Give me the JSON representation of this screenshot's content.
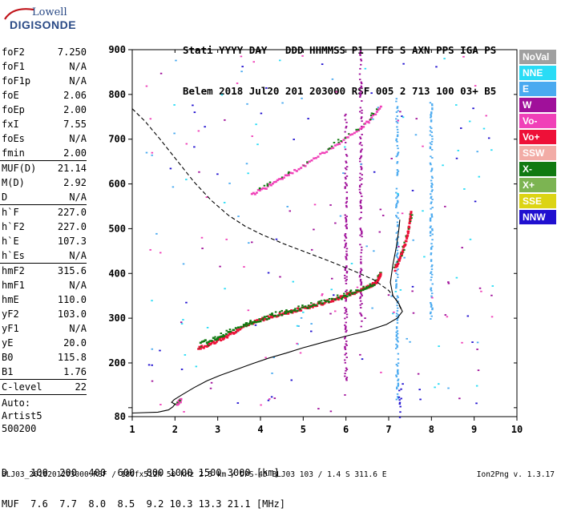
{
  "logo": {
    "line1": "Lowell",
    "line2": "DIGISONDE"
  },
  "header": {
    "labels": "Stati YYYY DAY   DDD HHMMSS P1  FFS S AXN PPS IGA PS",
    "values": "Belem 2018 Jul20 201 203000 RSF 005 2 713 100 03+ B5"
  },
  "params_group1": [
    {
      "k": "foF2",
      "v": "7.250"
    },
    {
      "k": "foF1",
      "v": "N/A"
    },
    {
      "k": "foF1p",
      "v": "N/A"
    },
    {
      "k": "foE",
      "v": "2.06"
    },
    {
      "k": "foEp",
      "v": "2.00"
    },
    {
      "k": "fxI",
      "v": "7.55"
    },
    {
      "k": "foEs",
      "v": "N/A"
    },
    {
      "k": "fmin",
      "v": "2.00"
    }
  ],
  "params_group2": [
    {
      "k": "MUF(D)",
      "v": "21.14"
    },
    {
      "k": "M(D)",
      "v": "2.92"
    },
    {
      "k": "D",
      "v": "N/A"
    }
  ],
  "params_group3": [
    {
      "k": "h`F",
      "v": "227.0"
    },
    {
      "k": "h`F2",
      "v": "227.0"
    },
    {
      "k": "h`E",
      "v": "107.3"
    },
    {
      "k": "h`Es",
      "v": "N/A"
    }
  ],
  "params_group4": [
    {
      "k": "hmF2",
      "v": "315.6"
    },
    {
      "k": "hmF1",
      "v": "N/A"
    },
    {
      "k": "hmE",
      "v": "110.0"
    },
    {
      "k": "yF2",
      "v": "103.0"
    },
    {
      "k": "yF1",
      "v": "N/A"
    },
    {
      "k": "yE",
      "v": "20.0"
    },
    {
      "k": "B0",
      "v": "115.8"
    },
    {
      "k": "B1",
      "v": "1.76"
    }
  ],
  "params_group5": [
    {
      "k": "C-level",
      "v": "22"
    }
  ],
  "auto": [
    "Auto:",
    "Artist5",
    "500200"
  ],
  "legend": [
    {
      "label": "NoVal",
      "color": "#a0a0a0"
    },
    {
      "label": "NNE",
      "color": "#29dcf6"
    },
    {
      "label": "E",
      "color": "#4aaaf0"
    },
    {
      "label": "W",
      "color": "#a0109a"
    },
    {
      "label": "Vo-",
      "color": "#f040b8"
    },
    {
      "label": "Vo+",
      "color": "#ee1038"
    },
    {
      "label": "SSW",
      "color": "#f2aca6"
    },
    {
      "label": "X-",
      "color": "#107a10"
    },
    {
      "label": "X+",
      "color": "#7cb452"
    },
    {
      "label": "SSE",
      "color": "#dcd414"
    },
    {
      "label": "NNW",
      "color": "#2010d0"
    }
  ],
  "footer": {
    "line1": "D    100  200  400  600  800 1000 1500 3000 [km]",
    "line2": "MUF  7.6  7.7  8.0  8.5  9.2 10.3 13.3 21.1 [MHz]",
    "fileline": "BLJ03_2018201203000.RSF / 180fx512h 50 kHz 2.5 km / DPS-4D BLJ03 103 / 1.4 S 311.6 E",
    "version": "Ion2Png v. 1.3.17"
  },
  "chart_data": {
    "type": "scatter",
    "title": "",
    "xlabel": "",
    "ylabel": "",
    "xlim": [
      1,
      10
    ],
    "ylim": [
      80,
      900
    ],
    "x_ticks": [
      1,
      2,
      3,
      4,
      5,
      6,
      7,
      8,
      9,
      10
    ],
    "y_ticks": [
      80,
      100,
      200,
      300,
      400,
      500,
      600,
      700,
      800,
      900
    ],
    "y_tick_labels": [
      "80",
      "200",
      "300",
      "400",
      "500",
      "600",
      "700",
      "800",
      "900"
    ],
    "traces": [
      {
        "name": "F2 O-trace",
        "color": "#ee1038",
        "points": [
          [
            2.55,
            232
          ],
          [
            2.75,
            238
          ],
          [
            2.95,
            246
          ],
          [
            3.15,
            256
          ],
          [
            3.35,
            266
          ],
          [
            3.55,
            277
          ],
          [
            3.75,
            286
          ],
          [
            3.95,
            294
          ],
          [
            4.15,
            300
          ],
          [
            4.35,
            305
          ],
          [
            4.55,
            310
          ],
          [
            4.75,
            315
          ],
          [
            4.95,
            320
          ],
          [
            5.15,
            325
          ],
          [
            5.35,
            330
          ],
          [
            5.55,
            336
          ],
          [
            5.75,
            342
          ],
          [
            5.95,
            348
          ],
          [
            6.15,
            355
          ],
          [
            6.35,
            362
          ],
          [
            6.5,
            368
          ],
          [
            6.62,
            374
          ],
          [
            6.72,
            382
          ],
          [
            6.78,
            392
          ],
          [
            6.82,
            400
          ]
        ]
      },
      {
        "name": "F2 O-trace upper",
        "color": "#ee1038",
        "points": [
          [
            7.15,
            408
          ],
          [
            7.25,
            430
          ],
          [
            7.33,
            450
          ],
          [
            7.4,
            470
          ],
          [
            7.45,
            490
          ],
          [
            7.5,
            515
          ],
          [
            7.53,
            540
          ]
        ]
      },
      {
        "name": "F2 X-trace",
        "color": "#107a10",
        "points": [
          [
            2.6,
            244
          ],
          [
            2.9,
            252
          ],
          [
            3.3,
            270
          ],
          [
            3.8,
            290
          ],
          [
            4.2,
            302
          ],
          [
            4.8,
            318
          ],
          [
            5.3,
            329
          ],
          [
            5.9,
            346
          ],
          [
            6.4,
            364
          ],
          [
            6.7,
            375
          ]
        ]
      },
      {
        "name": "Vo- trace",
        "color": "#f040b8",
        "points": [
          [
            3.8,
            575
          ],
          [
            4.1,
            590
          ],
          [
            4.4,
            605
          ],
          [
            4.7,
            622
          ],
          [
            5.1,
            645
          ],
          [
            5.5,
            670
          ],
          [
            5.9,
            695
          ],
          [
            6.3,
            720
          ],
          [
            6.6,
            748
          ],
          [
            6.85,
            775
          ]
        ]
      },
      {
        "name": "E layer",
        "color": "#f040b8",
        "points": [
          [
            2.05,
            108
          ],
          [
            2.1,
            112
          ],
          [
            2.15,
            116
          ]
        ]
      }
    ],
    "lines": [
      {
        "name": "electron density profile",
        "style": "solid",
        "points": [
          [
            1.0,
            88
          ],
          [
            1.6,
            90
          ],
          [
            1.85,
            95
          ],
          [
            1.95,
            102
          ],
          [
            2.0,
            108
          ],
          [
            1.92,
            112
          ],
          [
            1.98,
            118
          ],
          [
            2.15,
            128
          ],
          [
            2.45,
            145
          ],
          [
            2.75,
            160
          ],
          [
            3.05,
            172
          ],
          [
            3.4,
            184
          ],
          [
            3.8,
            198
          ],
          [
            4.2,
            211
          ],
          [
            4.6,
            222
          ],
          [
            5.0,
            234
          ],
          [
            5.5,
            247
          ],
          [
            6.0,
            260
          ],
          [
            6.5,
            272
          ],
          [
            6.95,
            286
          ],
          [
            7.2,
            300
          ],
          [
            7.32,
            315
          ],
          [
            7.24,
            332
          ],
          [
            7.1,
            350
          ],
          [
            7.04,
            380
          ],
          [
            7.1,
            420
          ],
          [
            7.18,
            460
          ],
          [
            7.24,
            500
          ],
          [
            7.26,
            520
          ]
        ]
      },
      {
        "name": "profile extension",
        "style": "dashed",
        "points": [
          [
            1.0,
            768
          ],
          [
            1.3,
            740
          ],
          [
            1.65,
            700
          ],
          [
            2.05,
            652
          ],
          [
            2.45,
            604
          ],
          [
            2.85,
            563
          ],
          [
            3.25,
            530
          ],
          [
            3.65,
            505
          ],
          [
            4.05,
            486
          ],
          [
            4.55,
            466
          ],
          [
            5.05,
            448
          ],
          [
            5.6,
            428
          ],
          [
            6.2,
            405
          ],
          [
            6.65,
            386
          ],
          [
            7.0,
            362
          ],
          [
            7.2,
            338
          ],
          [
            7.3,
            318
          ]
        ]
      }
    ],
    "vertical_streaks": [
      {
        "color": "#a0109a",
        "x": 6.35,
        "y_range": [
          280,
          900
        ]
      },
      {
        "color": "#a0109a",
        "x": 6.0,
        "y_range": [
          130,
          760
        ]
      },
      {
        "color": "#4aaaf0",
        "x": 7.2,
        "y_range": [
          120,
          800
        ]
      },
      {
        "color": "#2010d0",
        "x": 7.27,
        "y_range": [
          80,
          150
        ]
      },
      {
        "color": "#4aaaf0",
        "x": 8.0,
        "y_range": [
          300,
          790
        ]
      }
    ]
  }
}
